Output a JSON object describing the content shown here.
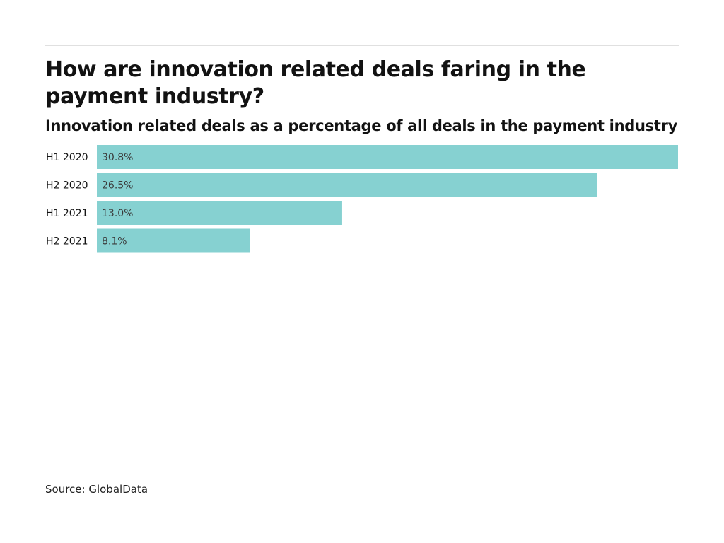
{
  "title": "How are innovation related deals faring in the payment industry?",
  "subtitle": "Innovation related deals as a percentage of all deals in the payment industry",
  "source": "Source: GlobalData",
  "colors": {
    "bar": "#86d1d1",
    "text": "#121212"
  },
  "chart_data": {
    "type": "bar",
    "orientation": "horizontal",
    "categories": [
      "H1 2020",
      "H2 2020",
      "H1 2021",
      "H2 2021"
    ],
    "values": [
      30.8,
      26.5,
      13.0,
      8.1
    ],
    "value_labels": [
      "30.8%",
      "26.5%",
      "13.0%",
      "8.1%"
    ],
    "title": "How are innovation related deals faring in the payment industry?",
    "subtitle": "Innovation related deals as a percentage of all deals in the payment industry",
    "xlabel": "",
    "ylabel": "",
    "unit": "%",
    "xlim": [
      0,
      30.8
    ],
    "grid": false,
    "legend": "none"
  }
}
